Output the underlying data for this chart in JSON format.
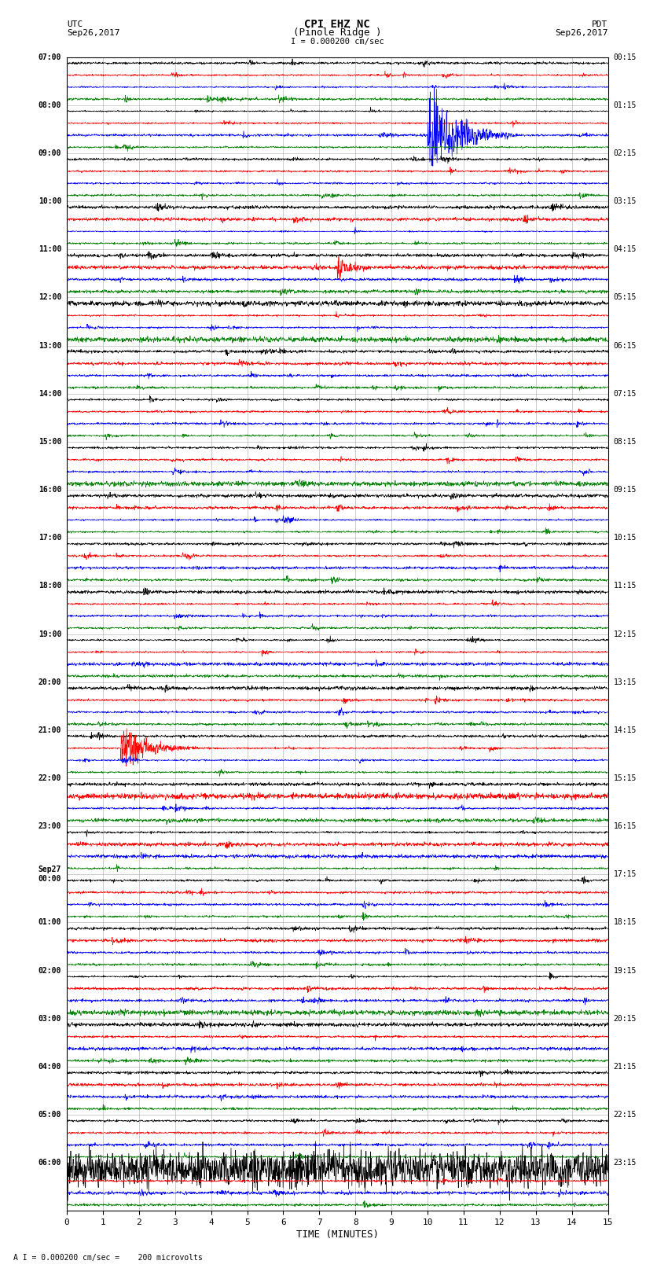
{
  "title_line1": "CPI EHZ NC",
  "title_line2": "(Pinole Ridge )",
  "scale_label": "I = 0.000200 cm/sec",
  "left_label": "UTC",
  "left_date": "Sep26,2017",
  "right_label": "PDT",
  "right_date": "Sep26,2017",
  "bottom_label": "TIME (MINUTES)",
  "footnote": "A I = 0.000200 cm/sec =    200 microvolts",
  "utc_labels": [
    "07:00",
    "08:00",
    "09:00",
    "10:00",
    "11:00",
    "12:00",
    "13:00",
    "14:00",
    "15:00",
    "16:00",
    "17:00",
    "18:00",
    "19:00",
    "20:00",
    "21:00",
    "22:00",
    "23:00",
    "Sep27\n00:00",
    "01:00",
    "02:00",
    "03:00",
    "04:00",
    "05:00",
    "06:00"
  ],
  "pdt_labels": [
    "00:15",
    "01:15",
    "02:15",
    "03:15",
    "04:15",
    "05:15",
    "06:15",
    "07:15",
    "08:15",
    "09:15",
    "10:15",
    "11:15",
    "12:15",
    "13:15",
    "14:15",
    "15:15",
    "16:15",
    "17:15",
    "18:15",
    "19:15",
    "20:15",
    "21:15",
    "22:15",
    "23:15"
  ],
  "n_rows": 24,
  "n_traces": 4,
  "colors": [
    "black",
    "red",
    "blue",
    "green"
  ],
  "x_ticks": [
    0,
    1,
    2,
    3,
    4,
    5,
    6,
    7,
    8,
    9,
    10,
    11,
    12,
    13,
    14,
    15
  ],
  "x_min": 0,
  "x_max": 15,
  "bg_color": "#ffffff",
  "grid_color": "#aaaaaa",
  "trace_amplitude": 0.35,
  "lw": 0.5
}
